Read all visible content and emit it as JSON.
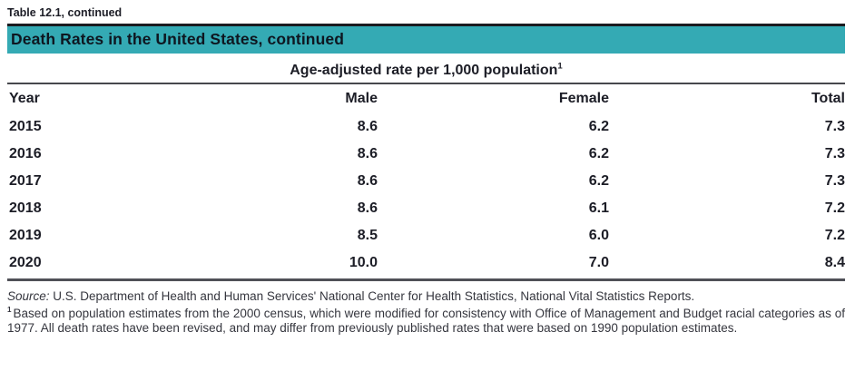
{
  "caption": "Table 12.1, continued",
  "title_bar": {
    "text": "Death Rates in the United States, continued",
    "background_color": "#34aab4"
  },
  "span_header": {
    "text": "Age-adjusted rate per 1,000 population",
    "footnote_marker": "1"
  },
  "table": {
    "columns": [
      "Year",
      "Male",
      "Female",
      "Total"
    ],
    "rows": [
      [
        "2015",
        "8.6",
        "6.2",
        "7.3"
      ],
      [
        "2016",
        "8.6",
        "6.2",
        "7.3"
      ],
      [
        "2017",
        "8.6",
        "6.2",
        "7.3"
      ],
      [
        "2018",
        "8.6",
        "6.1",
        "7.2"
      ],
      [
        "2019",
        "8.5",
        "6.0",
        "7.2"
      ],
      [
        "2020",
        "10.0",
        "7.0",
        "8.4"
      ]
    ]
  },
  "source": {
    "label": "Source:",
    "text": "U.S. Department of Health and Human Services' National Center for Health Statistics, National Vital Statistics Reports."
  },
  "footnote": {
    "marker": "1",
    "text": "Based on population estimates from the 2000 census, which were modified for consistency with Office of Management and Budget racial categories as of 1977. All death rates have been revised, and may differ from previously published rates that were based on 1990 population estimates."
  }
}
